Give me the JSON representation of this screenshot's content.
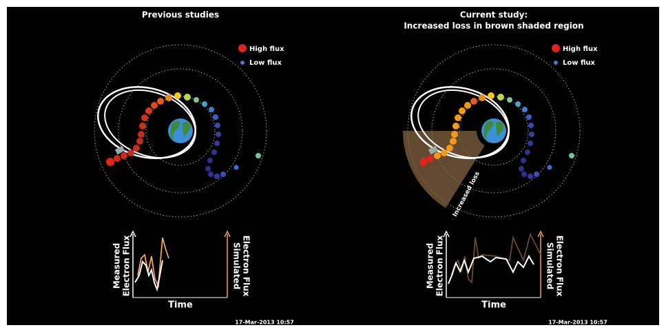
{
  "panels": [
    {
      "title": [
        "Previous studies"
      ],
      "legend": {
        "high": "High flux",
        "low": "Low flux"
      },
      "y_label_left": [
        "Measured",
        "Electron Flux"
      ],
      "y_label_right": [
        "Simulated",
        "Electron Flux"
      ],
      "x_label": "Time",
      "timestamp": "17-Mar-2013 10:57"
    },
    {
      "title": [
        "Current study:",
        "Increased loss in brown shaded region"
      ],
      "legend": {
        "high": "High flux",
        "low": "Low flux"
      },
      "y_label_left": [
        "Measured",
        "Electron Flux"
      ],
      "y_label_right": [
        "Simulated",
        "Electron Flux"
      ],
      "x_label": "Time",
      "timestamp": "17-Mar-2013 10:57",
      "shade_label": "Increased loss"
    }
  ]
}
